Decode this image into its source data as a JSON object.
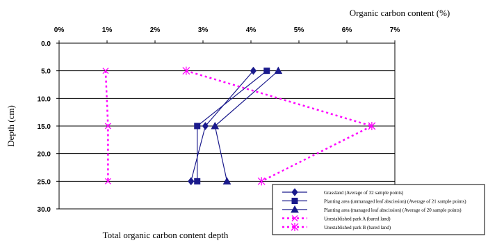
{
  "chart_data": {
    "type": "line",
    "title": "Organic carbon content (%)",
    "caption": "Total organic carbon content depth",
    "ylabel": "Depth (cm)",
    "xlim": [
      0,
      7
    ],
    "ylim": [
      0,
      30
    ],
    "x_axis_position": "top",
    "y_axis_inverted": true,
    "x_tick_labels": [
      "0%",
      "1%",
      "2%",
      "3%",
      "4%",
      "5%",
      "6%",
      "7%"
    ],
    "x_tick_values": [
      0,
      1,
      2,
      3,
      4,
      5,
      6,
      7
    ],
    "y_tick_labels": [
      "0.0",
      "5.0",
      "10.0",
      "15.0",
      "20.0",
      "25.0",
      "30.0"
    ],
    "y_tick_values": [
      0,
      5,
      10,
      15,
      20,
      25,
      30
    ],
    "grid": "horizontal",
    "legend_position": "bottom-right",
    "series": [
      {
        "name": "Grassland (Average of 32 sample points)",
        "marker": "diamond",
        "line": "solid",
        "color": "#1a1a8c",
        "x": [
          4.05,
          3.05,
          2.75
        ],
        "y": [
          5,
          15,
          25
        ]
      },
      {
        "name": "Planting area (unmanaged leaf abscission) (Average of 21 sample points)",
        "marker": "square",
        "line": "solid",
        "color": "#1a1a8c",
        "x": [
          4.33,
          2.88,
          2.88
        ],
        "y": [
          5,
          15,
          25
        ]
      },
      {
        "name": "Planting area (managed leaf abscission) (Average of 20 sample points)",
        "marker": "triangle",
        "line": "solid",
        "color": "#1a1a8c",
        "x": [
          4.57,
          3.25,
          3.5
        ],
        "y": [
          5,
          15,
          25
        ]
      },
      {
        "name": "Unestablished park A (bared land)",
        "marker": "x",
        "line": "dashed",
        "color": "#ff00ff",
        "x": [
          0.97,
          1.02,
          1.02
        ],
        "y": [
          5,
          15,
          25
        ]
      },
      {
        "name": "Unestablished park B (bared land)",
        "marker": "asterisk",
        "line": "dashed",
        "color": "#ff00ff",
        "x": [
          2.65,
          6.52,
          4.22
        ],
        "y": [
          5,
          15,
          25
        ]
      }
    ]
  }
}
